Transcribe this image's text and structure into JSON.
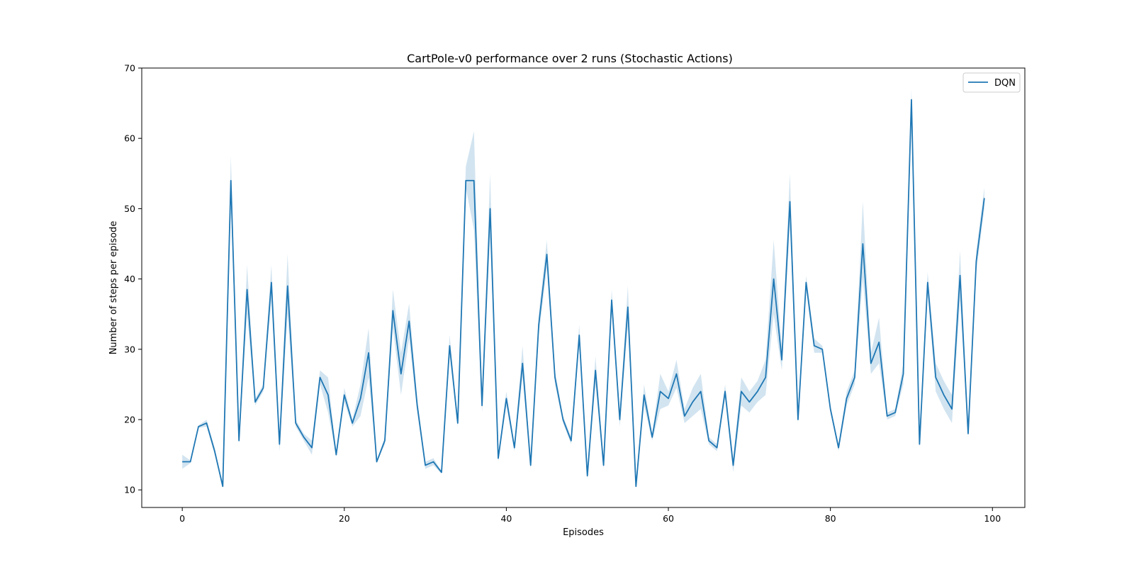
{
  "chart_data": {
    "type": "line",
    "title": "CartPole-v0 performance over 2 runs (Stochastic Actions)",
    "xlabel": "Episodes",
    "ylabel": "Number of steps per episode",
    "xlim": [
      -5,
      104
    ],
    "ylim": [
      7.5,
      70
    ],
    "xticks": [
      0,
      20,
      40,
      60,
      80,
      100
    ],
    "yticks": [
      10,
      20,
      30,
      40,
      50,
      60,
      70
    ],
    "grid": false,
    "legend_position": "top-right",
    "colors": {
      "line": "#1f77b4",
      "band": "#1f77b4"
    },
    "series": [
      {
        "name": "DQN",
        "x": [
          0,
          1,
          2,
          3,
          4,
          5,
          6,
          7,
          8,
          9,
          10,
          11,
          12,
          13,
          14,
          15,
          16,
          17,
          18,
          19,
          20,
          21,
          22,
          23,
          24,
          25,
          26,
          27,
          28,
          29,
          30,
          31,
          32,
          33,
          34,
          35,
          36,
          37,
          38,
          39,
          40,
          41,
          42,
          43,
          44,
          45,
          46,
          47,
          48,
          49,
          50,
          51,
          52,
          53,
          54,
          55,
          56,
          57,
          58,
          59,
          60,
          61,
          62,
          63,
          64,
          65,
          66,
          67,
          68,
          69,
          70,
          71,
          72,
          73,
          74,
          75,
          76,
          77,
          78,
          79,
          80,
          81,
          82,
          83,
          84,
          85,
          86,
          87,
          88,
          89,
          90,
          91,
          92,
          93,
          94,
          95,
          96,
          97,
          98,
          99
        ],
        "values": [
          14,
          14,
          19,
          19.5,
          15.5,
          10.5,
          54,
          17,
          38.5,
          22.5,
          24.5,
          39.5,
          16.5,
          39,
          19.5,
          17.5,
          16,
          26,
          23.5,
          15,
          23.5,
          19.5,
          23,
          29.5,
          14,
          17,
          35.5,
          26.5,
          34,
          22,
          13.5,
          14,
          12.5,
          30.5,
          19.5,
          54,
          54,
          22,
          50,
          14.5,
          23,
          16,
          28,
          13.5,
          33.5,
          43.5,
          26,
          20,
          17,
          32,
          12,
          27,
          13.5,
          37,
          20,
          36,
          10.5,
          23.5,
          17.5,
          24,
          23,
          26.5,
          20.5,
          22.5,
          24,
          17,
          16,
          24,
          13.5,
          24,
          22.5,
          24,
          26,
          40,
          28.5,
          51,
          20,
          39.5,
          30.5,
          30,
          21.5,
          16,
          23,
          26,
          45,
          28,
          31,
          20.5,
          21,
          26.5,
          65.5,
          16.5,
          39.5,
          26,
          23.5,
          21.5,
          40.5,
          18,
          42.5,
          51.5
        ],
        "lower": [
          13,
          13.8,
          18.8,
          19,
          15,
          10.3,
          50.5,
          16.8,
          35,
          22,
          24,
          37,
          15.5,
          35,
          19,
          17,
          15,
          25,
          21,
          14.8,
          22.5,
          19,
          20.5,
          26,
          13.8,
          16.5,
          33,
          23.5,
          31.5,
          21,
          13,
          13.5,
          12.3,
          29,
          19,
          53,
          47,
          21,
          46,
          14,
          22,
          15.5,
          26,
          13,
          32,
          41.5,
          25,
          19.5,
          16.5,
          30.5,
          11.5,
          25,
          13,
          35.5,
          19,
          33.5,
          10.3,
          22,
          17,
          21.5,
          22,
          24.5,
          19.5,
          20.5,
          21.5,
          16.5,
          15.5,
          23,
          12.5,
          22,
          21,
          22.5,
          23.5,
          35,
          27,
          47.5,
          19.5,
          38.5,
          29.5,
          29.5,
          21,
          15.5,
          22,
          25,
          40,
          26.5,
          28,
          20,
          20.5,
          25,
          64,
          16,
          38,
          24,
          21.5,
          19.5,
          37,
          17.5,
          41,
          50
        ],
        "upper": [
          15,
          14.2,
          19.2,
          20,
          16,
          10.7,
          57.5,
          17.2,
          42,
          23,
          25,
          42,
          17.5,
          43.5,
          20,
          18,
          17,
          27,
          26,
          15.2,
          24.5,
          20,
          25,
          33,
          14.2,
          17.5,
          38.5,
          29.5,
          36.5,
          23,
          14,
          14.5,
          12.7,
          32,
          20,
          56,
          61,
          23,
          55,
          15,
          24,
          16.5,
          30.5,
          14,
          35,
          45.5,
          27,
          20.5,
          17.5,
          33.5,
          12.5,
          29,
          14,
          38.5,
          21,
          39,
          10.7,
          25,
          18,
          26.5,
          24,
          28.5,
          21.5,
          24.5,
          26.5,
          17.5,
          16.5,
          25,
          14.5,
          26,
          24,
          25.5,
          28.5,
          45.5,
          30,
          55,
          20.5,
          40.5,
          31.5,
          30.5,
          22,
          16.5,
          24,
          27,
          51,
          29.5,
          34.5,
          21,
          21.5,
          28,
          67,
          17,
          41,
          28,
          25.5,
          23.5,
          44,
          18.5,
          44,
          53
        ]
      }
    ]
  }
}
